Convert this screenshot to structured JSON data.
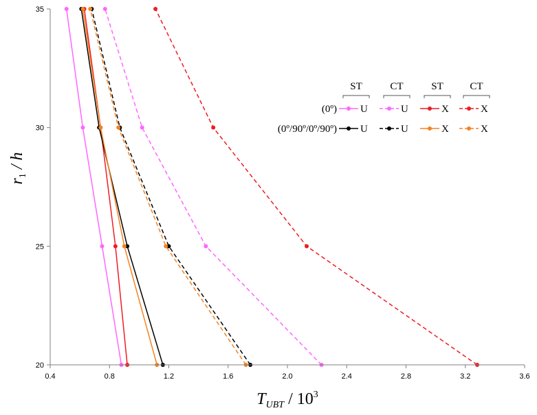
{
  "chart_data": {
    "type": "line",
    "title": "",
    "xlabel": {
      "main": "T",
      "sub": "UBT",
      "rest": " / 10",
      "sup": "3"
    },
    "ylabel": {
      "main": "r",
      "sub": "1",
      "rest": " / h"
    },
    "xlim": [
      0.4,
      3.6
    ],
    "ylim": [
      20,
      35
    ],
    "xticks": [
      "0.4",
      "0.8",
      "1.2",
      "1.6",
      "2.0",
      "2.4",
      "2.8",
      "3.2",
      "3.6"
    ],
    "yticks": [
      "20",
      "25",
      "30",
      "35"
    ],
    "grid": false,
    "legend": {
      "position": "upper-right",
      "theory_headers": [
        "ST",
        "CT",
        "ST",
        "CT"
      ],
      "row_labels": [
        "(0º)",
        "(0º/90º/0º/90º)"
      ],
      "entry_marks": [
        "U",
        "U",
        "X",
        "X"
      ]
    },
    "series": [
      {
        "lamination": "(0º)",
        "theory": "ST",
        "mode": "U",
        "color": "#ff66ff",
        "dash": "solid",
        "x": [
          0.88,
          0.75,
          0.62,
          0.51
        ],
        "y": [
          20,
          25,
          30,
          35
        ]
      },
      {
        "lamination": "(0º)",
        "theory": "CT",
        "mode": "U",
        "color": "#ff66ff",
        "dash": "dashed",
        "x": [
          2.23,
          1.45,
          1.02,
          0.77
        ],
        "y": [
          20,
          25,
          30,
          35
        ]
      },
      {
        "lamination": "(0º)",
        "theory": "ST",
        "mode": "X",
        "color": "#ee1c24",
        "dash": "solid",
        "x": [
          0.92,
          0.84,
          0.74,
          0.63
        ],
        "y": [
          20,
          25,
          30,
          35
        ]
      },
      {
        "lamination": "(0º)",
        "theory": "CT",
        "mode": "X",
        "color": "#ee1c24",
        "dash": "dashed",
        "x": [
          3.28,
          2.13,
          1.5,
          1.11
        ],
        "y": [
          20,
          25,
          30,
          35
        ]
      },
      {
        "lamination": "(0º/90º/0º/90º)",
        "theory": "ST",
        "mode": "U",
        "color": "#000000",
        "dash": "solid",
        "x": [
          1.16,
          0.92,
          0.73,
          0.61
        ],
        "y": [
          20,
          25,
          30,
          35
        ]
      },
      {
        "lamination": "(0º/90º/0º/90º)",
        "theory": "CT",
        "mode": "U",
        "color": "#000000",
        "dash": "dashed",
        "x": [
          1.75,
          1.2,
          0.87,
          0.68
        ],
        "y": [
          20,
          25,
          30,
          35
        ]
      },
      {
        "lamination": "(0º/90º/0º/90º)",
        "theory": "ST",
        "mode": "X",
        "color": "#f58220",
        "dash": "solid",
        "x": [
          1.12,
          0.9,
          0.74,
          0.62
        ],
        "y": [
          20,
          25,
          30,
          35
        ]
      },
      {
        "lamination": "(0º/90º/0º/90º)",
        "theory": "CT",
        "mode": "X",
        "color": "#f58220",
        "dash": "dashed",
        "x": [
          1.72,
          1.18,
          0.86,
          0.67
        ],
        "y": [
          20,
          25,
          30,
          35
        ]
      }
    ]
  }
}
